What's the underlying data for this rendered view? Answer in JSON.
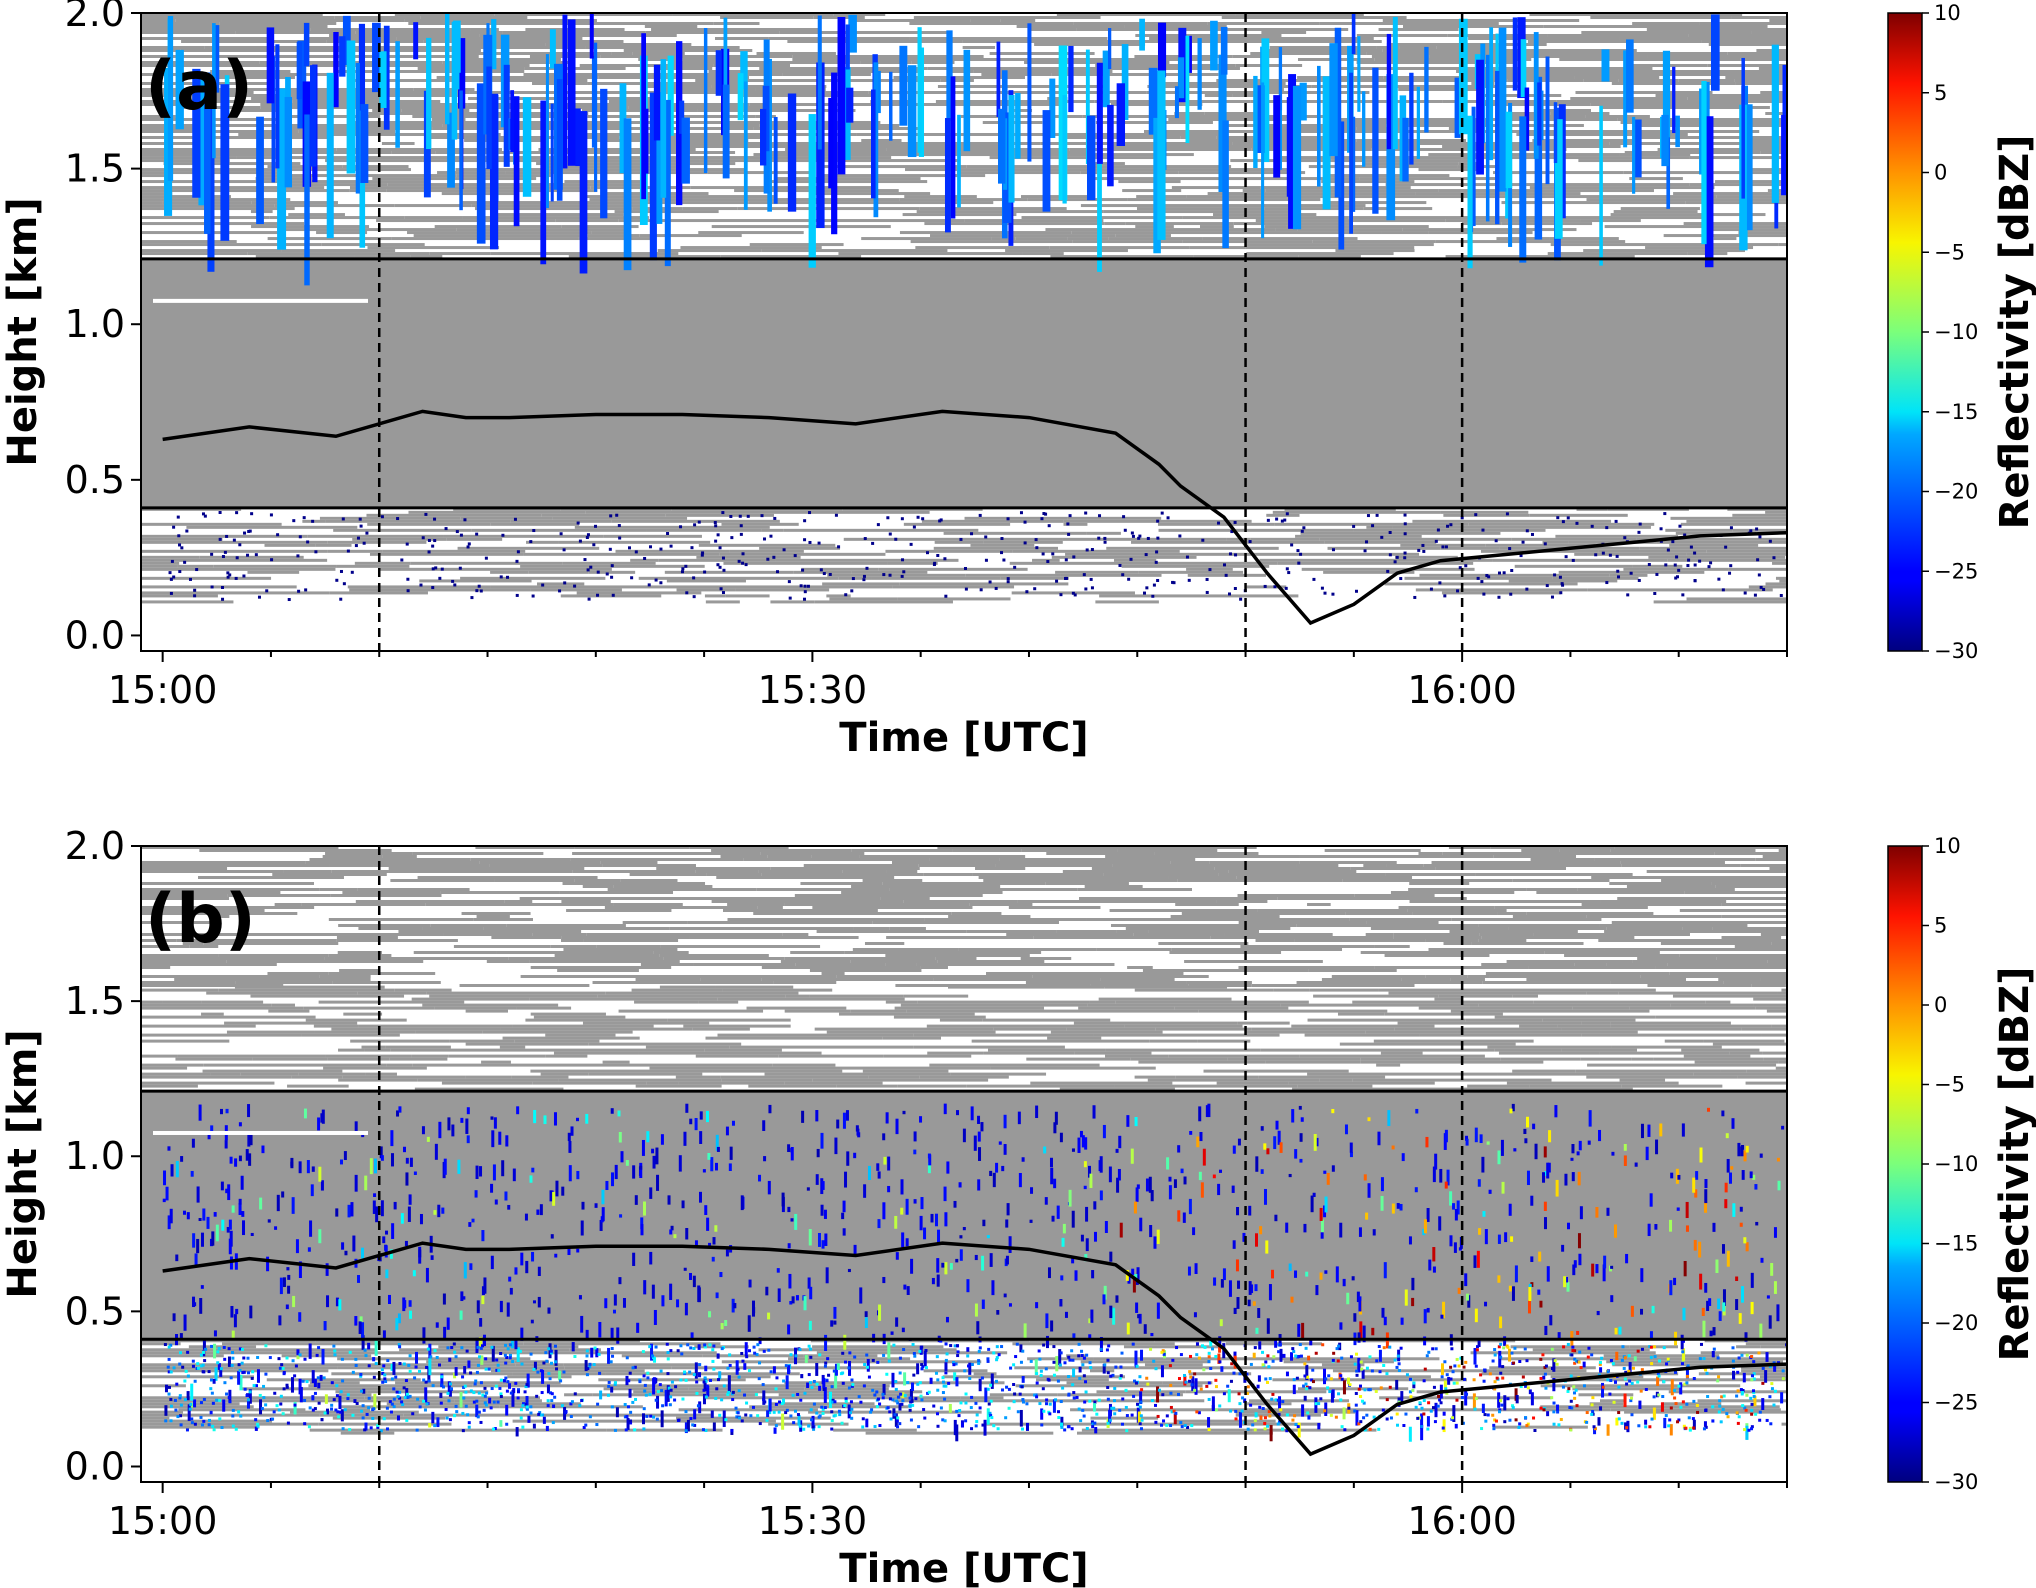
{
  "chart_data": [
    {
      "type": "heatmap",
      "panel_label": "(a)",
      "xlabel": "Time [UTC]",
      "ylabel": "Height [km]",
      "colorbar_label": "Reflectivity [dBZ]",
      "xlim": [
        "14:59",
        "16:15"
      ],
      "ylim": [
        -0.05,
        2.0
      ],
      "x_ticks": [
        "15:00",
        "15:30",
        "16:00"
      ],
      "y_ticks": [
        "0.0",
        "0.5",
        "1.0",
        "1.5",
        "2.0"
      ],
      "colorbar_ticks": [
        "10",
        "5",
        "0",
        "−5",
        "−10",
        "−15",
        "−20",
        "−25",
        "−30"
      ],
      "colorbar_range": [
        -30,
        10
      ],
      "colormap": "jet",
      "background_echo_color": "#999999",
      "horizontal_lines_km": [
        1.21,
        0.41
      ],
      "vertical_dashed_lines": [
        "15:10",
        "15:50",
        "16:00"
      ],
      "black_line": {
        "x_min": [
          0,
          4,
          8,
          12,
          14,
          16,
          20,
          24,
          28,
          32,
          36,
          40,
          44,
          46,
          47,
          49,
          51,
          53,
          55,
          57,
          59,
          62,
          65,
          68,
          71,
          75
        ],
        "height_km": [
          0.63,
          0.67,
          0.64,
          0.72,
          0.7,
          0.7,
          0.71,
          0.71,
          0.7,
          0.68,
          0.72,
          0.7,
          0.65,
          0.55,
          0.48,
          0.38,
          0.2,
          0.04,
          0.1,
          0.2,
          0.24,
          0.26,
          0.28,
          0.3,
          0.32,
          0.33
        ]
      },
      "echo_description": "Dense blue (-30 to -20 dBZ) precipitation streaks between 1.2 and 2.0 km, sparse dark-blue returns below 0.4 km"
    },
    {
      "type": "heatmap",
      "panel_label": "(b)",
      "xlabel": "Time [UTC]",
      "ylabel": "Height [km]",
      "colorbar_label": "Reflectivity [dBZ]",
      "xlim": [
        "14:59",
        "16:15"
      ],
      "ylim": [
        -0.05,
        2.0
      ],
      "x_ticks": [
        "15:00",
        "15:30",
        "16:00"
      ],
      "y_ticks": [
        "0.0",
        "0.5",
        "1.0",
        "1.5",
        "2.0"
      ],
      "colorbar_ticks": [
        "10",
        "5",
        "0",
        "−5",
        "−10",
        "−15",
        "−20",
        "−25",
        "−30"
      ],
      "colorbar_range": [
        -30,
        10
      ],
      "colormap": "jet",
      "background_echo_color": "#999999",
      "horizontal_lines_km": [
        1.21,
        0.41
      ],
      "vertical_dashed_lines": [
        "15:10",
        "15:50",
        "16:00"
      ],
      "black_line": {
        "x_min": [
          0,
          4,
          8,
          12,
          14,
          16,
          20,
          24,
          28,
          32,
          36,
          40,
          44,
          46,
          47,
          49,
          51,
          53,
          55,
          57,
          59,
          62,
          65,
          68,
          71,
          75
        ],
        "height_km": [
          0.63,
          0.67,
          0.64,
          0.72,
          0.7,
          0.7,
          0.71,
          0.71,
          0.7,
          0.68,
          0.72,
          0.7,
          0.65,
          0.55,
          0.48,
          0.38,
          0.2,
          0.04,
          0.1,
          0.2,
          0.24,
          0.26,
          0.28,
          0.3,
          0.32,
          0.33
        ]
      },
      "echo_description": "Scattered dark-blue speckle up to 1.2 km with denser blue/cyan returns below 0.4 km and warm (yellow/red) returns after 15:45"
    }
  ]
}
